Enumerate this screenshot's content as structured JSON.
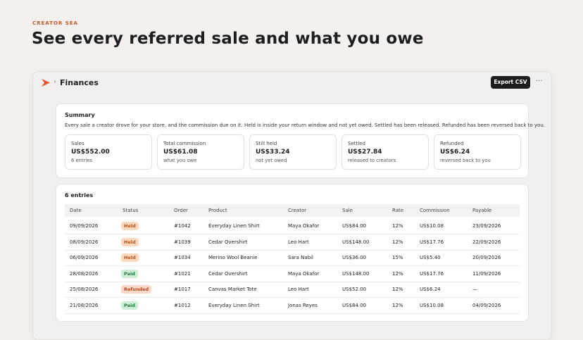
{
  "brand": "CREATOR SEA",
  "headline": "See every referred sale and what you owe",
  "window": {
    "breadcrumb": "Finances",
    "export_button": "Export CSV",
    "more": "···"
  },
  "summary": {
    "title": "Summary",
    "description": "Every sale a creator drove for your store, and the commission due on it. Held is inside your return window and not yet owed. Settled has been released. Refunded has been reversed back to you.",
    "stats": [
      {
        "label": "Sales",
        "value": "US$552.00",
        "note": "6 entries"
      },
      {
        "label": "Total commission",
        "value": "US$61.08",
        "note": "what you owe"
      },
      {
        "label": "Still held",
        "value": "US$33.24",
        "note": "not yet owed"
      },
      {
        "label": "Settled",
        "value": "US$27.84",
        "note": "released to creators"
      },
      {
        "label": "Refunded",
        "value": "US$6.24",
        "note": "reversed back to you"
      }
    ]
  },
  "table": {
    "title": "6 entries",
    "columns": [
      "Date",
      "Status",
      "Order",
      "Product",
      "Creator",
      "Sale",
      "Rate",
      "Commission",
      "Payable"
    ],
    "status_colors": {
      "Held": {
        "bg": "#fcd8bd",
        "fg": "#b4531c"
      },
      "Paid": {
        "bg": "#cfeed7",
        "fg": "#1f7a3d"
      },
      "Refunded": {
        "bg": "#fbd7cb",
        "fg": "#b2461e"
      }
    },
    "rows": [
      [
        "09/09/2026",
        "Held",
        "#1042",
        "Everyday Linen Shirt",
        "Maya Okafor",
        "US$84.00",
        "12%",
        "US$10.08",
        "23/09/2026"
      ],
      [
        "08/09/2026",
        "Held",
        "#1039",
        "Cedar Overshirt",
        "Leo Hart",
        "US$148.00",
        "12%",
        "US$17.76",
        "22/09/2026"
      ],
      [
        "06/09/2026",
        "Held",
        "#1034",
        "Merino Wool Beanie",
        "Sara Nabil",
        "US$36.00",
        "15%",
        "US$5.40",
        "20/09/2026"
      ],
      [
        "28/08/2026",
        "Paid",
        "#1021",
        "Cedar Overshirt",
        "Maya Okafor",
        "US$148.00",
        "12%",
        "US$17.76",
        "11/09/2026"
      ],
      [
        "25/08/2026",
        "Refunded",
        "#1017",
        "Canvas Market Tote",
        "Leo Hart",
        "US$52.00",
        "12%",
        "US$6.24",
        "—"
      ],
      [
        "21/08/2026",
        "Paid",
        "#1012",
        "Everyday Linen Shirt",
        "Jonas Reyes",
        "US$84.00",
        "12%",
        "US$10.08",
        "04/09/2026"
      ]
    ]
  }
}
